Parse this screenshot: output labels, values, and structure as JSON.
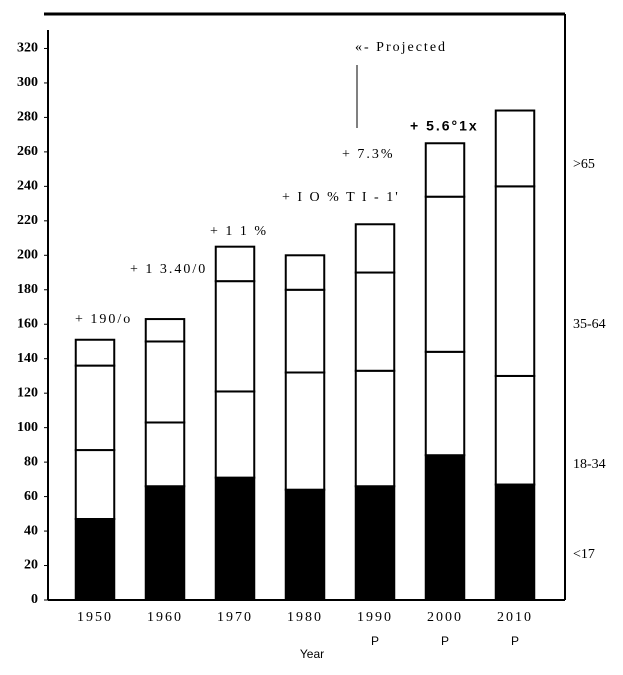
{
  "chart_data": {
    "type": "stacked_bar",
    "categories": [
      "1950",
      "1960",
      "1970",
      "1980",
      "1990",
      "2000",
      "2010"
    ],
    "x_sublabels": [
      null,
      null,
      null,
      null,
      "P",
      "P",
      "P"
    ],
    "series": [
      {
        "name": "<17",
        "color": "#000000",
        "values": [
          47,
          66,
          71,
          64,
          66,
          84,
          67
        ]
      },
      {
        "name": "18-34",
        "color": "#ffffff",
        "values": [
          40,
          37,
          50,
          68,
          67,
          60,
          63
        ]
      },
      {
        "name": "35-64",
        "color": "#ffffff",
        "values": [
          49,
          47,
          64,
          48,
          57,
          90,
          110
        ]
      },
      {
        "name": ">65",
        "color": "#ffffff",
        "values": [
          15,
          13,
          20,
          20,
          28,
          31,
          44
        ]
      }
    ],
    "annotations": [
      "+ 190/o",
      "+ 1 3.40/0",
      "+ 1 1 %",
      "+ I O % T I - 1'",
      "+ 7.3%",
      "+ 5.6°1x",
      "«- Projected"
    ],
    "xlabel": "Year",
    "ylim": [
      0,
      340
    ],
    "yticks": [
      0,
      20,
      40,
      60,
      80,
      100,
      120,
      140,
      160,
      180,
      200,
      220,
      240,
      260,
      280,
      300,
      320
    ]
  }
}
